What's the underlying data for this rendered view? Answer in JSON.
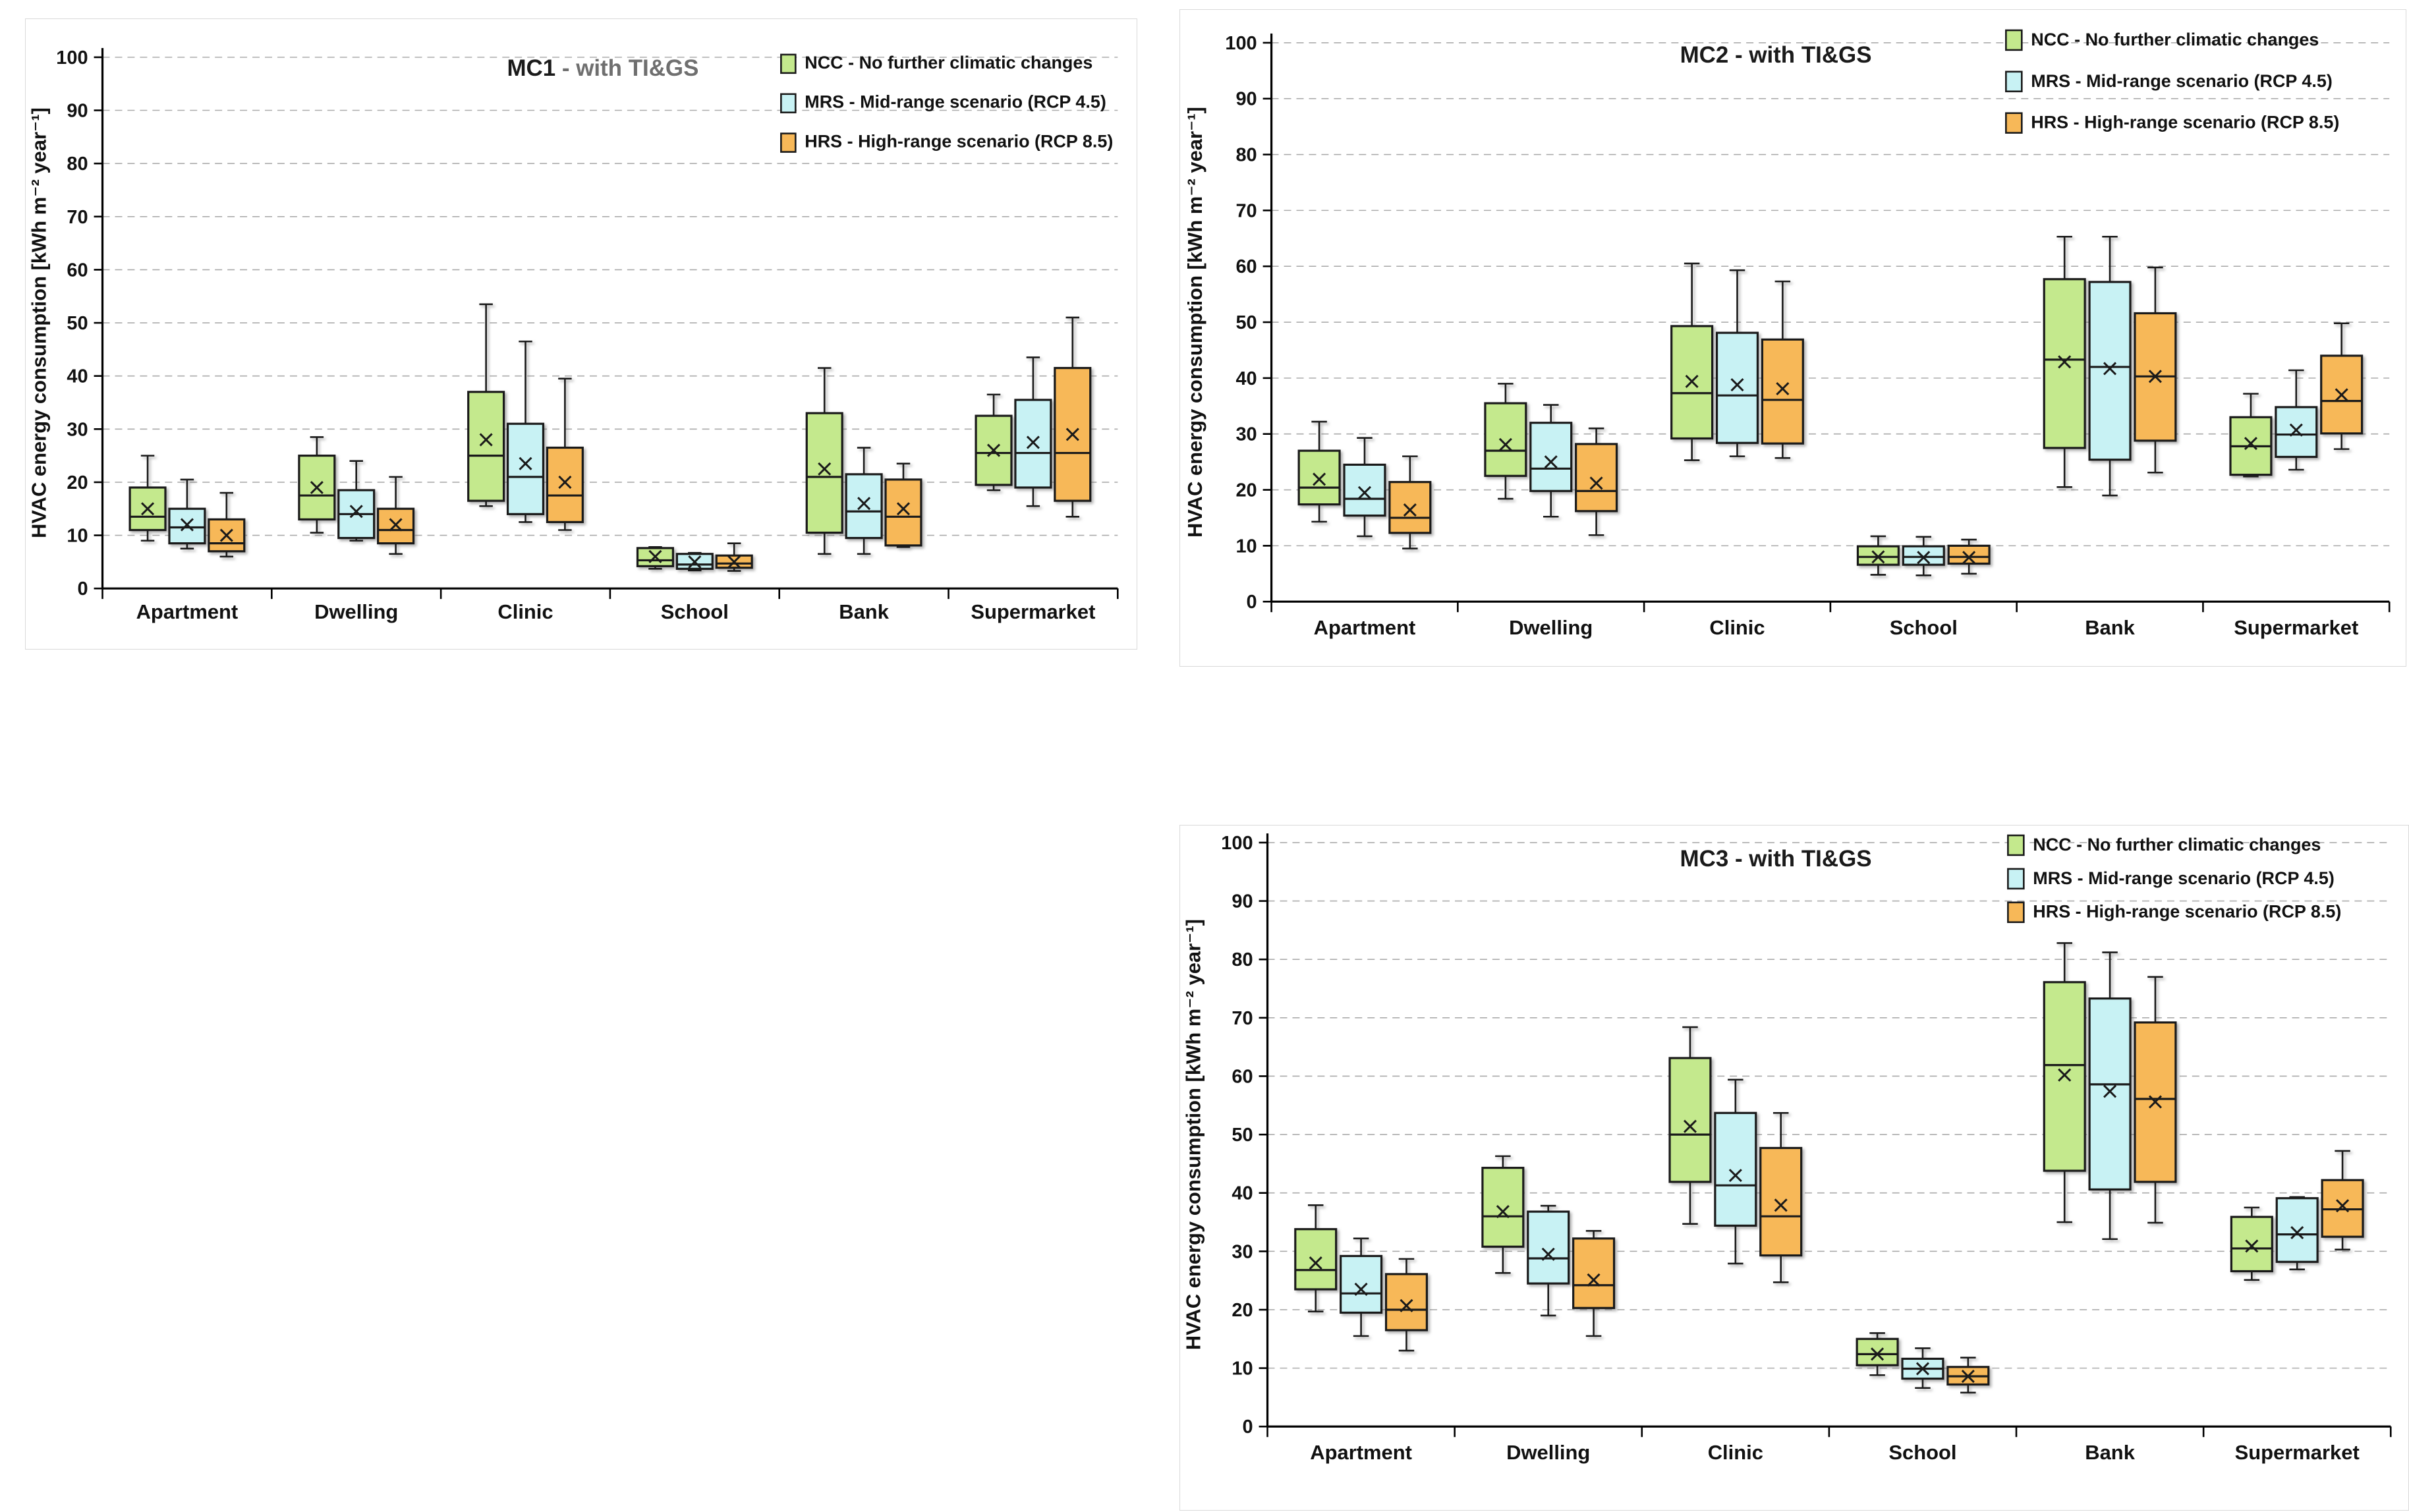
{
  "page": {
    "background": "#ffffff"
  },
  "colors": {
    "ncc_fill": "#c4e98d",
    "mrs_fill": "#c8f2f4",
    "hrs_fill": "#f7b858",
    "box_border": "#1a1a1a",
    "gridline": "#ababab",
    "axis": "#000000",
    "title_black": "#1a1a1a",
    "title_gray": "#6f6f6f",
    "panel_border": "#d9d9d9"
  },
  "chart_data": [
    {
      "id": "mc1",
      "type": "boxplot",
      "title_main": "MC1",
      "title_suffix": " - with TI&GS",
      "title_main_color": "#1a1a1a",
      "title_suffix_color": "#6f6f6f",
      "ylabel": "HVAC energy consumption [kWh m⁻² year⁻¹]",
      "ylim": [
        0,
        100
      ],
      "ytick_step": 10,
      "grid": "horizontal-dashed",
      "legend_position": "top-right",
      "categories": [
        "Apartment",
        "Dwelling",
        "Clinic",
        "School",
        "Bank",
        "Supermarket"
      ],
      "series": [
        {
          "name": "NCC - No further climatic changes",
          "short": "NCC",
          "color": "#c4e98d",
          "boxes": [
            {
              "low": 9,
              "q1": 11,
              "median": 13.5,
              "mean": 15,
              "q3": 19,
              "high": 25
            },
            {
              "low": 10.5,
              "q1": 13,
              "median": 17.5,
              "mean": 19,
              "q3": 25,
              "high": 28.5
            },
            {
              "low": 15.5,
              "q1": 16.5,
              "median": 25,
              "mean": 28,
              "q3": 37,
              "high": 53.5
            },
            {
              "low": 3.7,
              "q1": 4.2,
              "median": 5.3,
              "mean": 6,
              "q3": 7.6,
              "high": 7.8
            },
            {
              "low": 6.5,
              "q1": 10.5,
              "median": 21,
              "mean": 22.5,
              "q3": 33,
              "high": 41.5
            },
            {
              "low": 18.5,
              "q1": 19.5,
              "median": 25.5,
              "mean": 26,
              "q3": 32.5,
              "high": 36.5
            }
          ]
        },
        {
          "name": "MRS - Mid-range scenario (RCP 4.5)",
          "short": "MRS",
          "color": "#c8f2f4",
          "boxes": [
            {
              "low": 7.5,
              "q1": 8.5,
              "median": 11.5,
              "mean": 12,
              "q3": 15,
              "high": 20.5
            },
            {
              "low": 9,
              "q1": 9.5,
              "median": 14,
              "mean": 14.5,
              "q3": 18.5,
              "high": 24
            },
            {
              "low": 12.5,
              "q1": 14,
              "median": 21,
              "mean": 23.5,
              "q3": 31,
              "high": 46.5
            },
            {
              "low": 3.4,
              "q1": 3.7,
              "median": 4.5,
              "mean": 5,
              "q3": 6.5,
              "high": 6.7
            },
            {
              "low": 6.5,
              "q1": 9.5,
              "median": 14.5,
              "mean": 16,
              "q3": 21.5,
              "high": 26.5
            },
            {
              "low": 15.5,
              "q1": 19,
              "median": 25.5,
              "mean": 27.5,
              "q3": 35.5,
              "high": 43.5
            }
          ]
        },
        {
          "name": "HRS - High-range scenario (RCP 8.5)",
          "short": "HRS",
          "color": "#f7b858",
          "boxes": [
            {
              "low": 6,
              "q1": 7,
              "median": 8.5,
              "mean": 10,
              "q3": 13,
              "high": 18
            },
            {
              "low": 6.5,
              "q1": 8.5,
              "median": 11,
              "mean": 12,
              "q3": 15,
              "high": 21
            },
            {
              "low": 11,
              "q1": 12.5,
              "median": 17.5,
              "mean": 20,
              "q3": 26.5,
              "high": 39.5
            },
            {
              "low": 3.3,
              "q1": 3.9,
              "median": 4.7,
              "mean": 5,
              "q3": 6.2,
              "high": 8.5
            },
            {
              "low": 7.8,
              "q1": 8.1,
              "median": 13.5,
              "mean": 15,
              "q3": 20.5,
              "high": 23.5
            },
            {
              "low": 13.5,
              "q1": 16.5,
              "median": 25.5,
              "mean": 29,
              "q3": 41.5,
              "high": 51
            }
          ]
        }
      ]
    },
    {
      "id": "mc2",
      "type": "boxplot",
      "title_main": "MC2",
      "title_suffix": " - with TI&GS",
      "title_main_color": "#1a1a1a",
      "title_suffix_color": "#1a1a1a",
      "ylabel": "HVAC energy consumption [kWh m⁻² year⁻¹]",
      "ylim": [
        0,
        100
      ],
      "ytick_step": 10,
      "grid": "horizontal-dashed",
      "legend_position": "top-right",
      "categories": [
        "Apartment",
        "Dwelling",
        "Clinic",
        "School",
        "Bank",
        "Supermarket"
      ],
      "series": [
        {
          "name": "NCC - No further climatic changes",
          "short": "NCC",
          "color": "#c4e98d",
          "boxes": [
            {
              "low": 14.3,
              "q1": 17.4,
              "median": 20.4,
              "mean": 21.9,
              "q3": 27,
              "high": 32.2
            },
            {
              "low": 18.4,
              "q1": 22.5,
              "median": 27,
              "mean": 28.1,
              "q3": 35.5,
              "high": 39
            },
            {
              "low": 25.3,
              "q1": 29.2,
              "median": 37.3,
              "mean": 39.4,
              "q3": 49.3,
              "high": 60.5
            },
            {
              "low": 4.8,
              "q1": 6.6,
              "median": 8,
              "mean": 8,
              "q3": 9.9,
              "high": 11.7
            },
            {
              "low": 20.5,
              "q1": 27.5,
              "median": 43.3,
              "mean": 42.9,
              "q3": 57.7,
              "high": 65.3
            },
            {
              "low": 22.4,
              "q1": 22.7,
              "median": 27.8,
              "mean": 28.3,
              "q3": 33,
              "high": 37.2
            }
          ]
        },
        {
          "name": "MRS - Mid-range scenario (RCP 4.5)",
          "short": "MRS",
          "color": "#c8f2f4",
          "boxes": [
            {
              "low": 11.7,
              "q1": 15.4,
              "median": 18.4,
              "mean": 19.5,
              "q3": 24.5,
              "high": 29.3
            },
            {
              "low": 15.2,
              "q1": 19.8,
              "median": 23.8,
              "mean": 25,
              "q3": 32,
              "high": 35.2
            },
            {
              "low": 26,
              "q1": 28.4,
              "median": 36.9,
              "mean": 38.8,
              "q3": 48.1,
              "high": 59.3
            },
            {
              "low": 4.7,
              "q1": 6.6,
              "median": 8,
              "mean": 7.9,
              "q3": 9.9,
              "high": 11.6
            },
            {
              "low": 19,
              "q1": 25.4,
              "median": 42,
              "mean": 41.7,
              "q3": 57.2,
              "high": 65.3
            },
            {
              "low": 23.6,
              "q1": 25.9,
              "median": 29.9,
              "mean": 30.7,
              "q3": 34.8,
              "high": 41.4
            }
          ]
        },
        {
          "name": "HRS - High-range scenario (RCP 8.5)",
          "short": "HRS",
          "color": "#f7b858",
          "boxes": [
            {
              "low": 9.5,
              "q1": 12.3,
              "median": 15,
              "mean": 16.4,
              "q3": 21.4,
              "high": 26
            },
            {
              "low": 11.9,
              "q1": 16.2,
              "median": 19.8,
              "mean": 21.2,
              "q3": 28.2,
              "high": 31
            },
            {
              "low": 25.7,
              "q1": 28.3,
              "median": 36.1,
              "mean": 38.1,
              "q3": 46.9,
              "high": 57.3
            },
            {
              "low": 5,
              "q1": 6.8,
              "median": 8,
              "mean": 7.9,
              "q3": 10,
              "high": 11.1
            },
            {
              "low": 23.1,
              "q1": 28.8,
              "median": 40.3,
              "mean": 40.3,
              "q3": 51.6,
              "high": 59.8
            },
            {
              "low": 27.3,
              "q1": 30.1,
              "median": 35.9,
              "mean": 37,
              "q3": 44,
              "high": 49.8
            }
          ]
        }
      ]
    },
    {
      "id": "mc3",
      "type": "boxplot",
      "title_main": "MC3",
      "title_suffix": " - with TI&GS",
      "title_main_color": "#1a1a1a",
      "title_suffix_color": "#1a1a1a",
      "ylabel": "HVAC energy consumption [kWh m⁻² year⁻¹]",
      "ylim": [
        0,
        100
      ],
      "ytick_step": 10,
      "grid": "horizontal-dashed",
      "legend_position": "top-right",
      "categories": [
        "Apartment",
        "Dwelling",
        "Clinic",
        "School",
        "Bank",
        "Supermarket"
      ],
      "series": [
        {
          "name": "NCC - No further climatic changes",
          "short": "NCC",
          "color": "#c4e98d",
          "boxes": [
            {
              "low": 19.7,
              "q1": 23.5,
              "median": 26.8,
              "mean": 28,
              "q3": 33.8,
              "high": 37.9
            },
            {
              "low": 26.3,
              "q1": 30.8,
              "median": 36,
              "mean": 36.8,
              "q3": 44.3,
              "high": 46.3
            },
            {
              "low": 34.7,
              "q1": 41.9,
              "median": 50,
              "mean": 51.4,
              "q3": 63.1,
              "high": 68.4
            },
            {
              "low": 8.8,
              "q1": 10.5,
              "median": 12.4,
              "mean": 12.4,
              "q3": 15,
              "high": 16
            },
            {
              "low": 35,
              "q1": 43.8,
              "median": 61.9,
              "mean": 60.2,
              "q3": 76.1,
              "high": 82.8
            },
            {
              "low": 25.1,
              "q1": 26.6,
              "median": 30.5,
              "mean": 30.9,
              "q3": 35.9,
              "high": 37.5
            }
          ]
        },
        {
          "name": "MRS - Mid-range scenario (RCP 4.5)",
          "short": "MRS",
          "color": "#c8f2f4",
          "boxes": [
            {
              "low": 15.5,
              "q1": 19.5,
              "median": 22.8,
              "mean": 23.5,
              "q3": 29.2,
              "high": 32.2
            },
            {
              "low": 19,
              "q1": 24.5,
              "median": 28.8,
              "mean": 29.5,
              "q3": 36.8,
              "high": 37.8
            },
            {
              "low": 27.9,
              "q1": 34.4,
              "median": 41.3,
              "mean": 43,
              "q3": 53.7,
              "high": 59.4
            },
            {
              "low": 6.6,
              "q1": 8.2,
              "median": 9.9,
              "mean": 9.9,
              "q3": 11.6,
              "high": 13.4
            },
            {
              "low": 32.1,
              "q1": 40.6,
              "median": 58.6,
              "mean": 57.4,
              "q3": 73.3,
              "high": 81.2
            },
            {
              "low": 26.9,
              "q1": 28.2,
              "median": 32.9,
              "mean": 33.2,
              "q3": 39.1,
              "high": 39.3
            }
          ]
        },
        {
          "name": "HRS - High-range scenario (RCP 8.5)",
          "short": "HRS",
          "color": "#f7b858",
          "boxes": [
            {
              "low": 13,
              "q1": 16.5,
              "median": 20,
              "mean": 20.7,
              "q3": 26.1,
              "high": 28.7
            },
            {
              "low": 15.5,
              "q1": 20.3,
              "median": 24.2,
              "mean": 25.1,
              "q3": 32.2,
              "high": 33.5
            },
            {
              "low": 24.7,
              "q1": 29.3,
              "median": 36,
              "mean": 37.9,
              "q3": 47.7,
              "high": 53.7
            },
            {
              "low": 5.8,
              "q1": 7.2,
              "median": 8.6,
              "mean": 8.6,
              "q3": 10.2,
              "high": 11.8
            },
            {
              "low": 34.9,
              "q1": 41.9,
              "median": 56.1,
              "mean": 55.6,
              "q3": 69.2,
              "high": 77
            },
            {
              "low": 30.3,
              "q1": 32.5,
              "median": 37.2,
              "mean": 37.8,
              "q3": 42.2,
              "high": 47.2
            }
          ]
        }
      ]
    }
  ]
}
